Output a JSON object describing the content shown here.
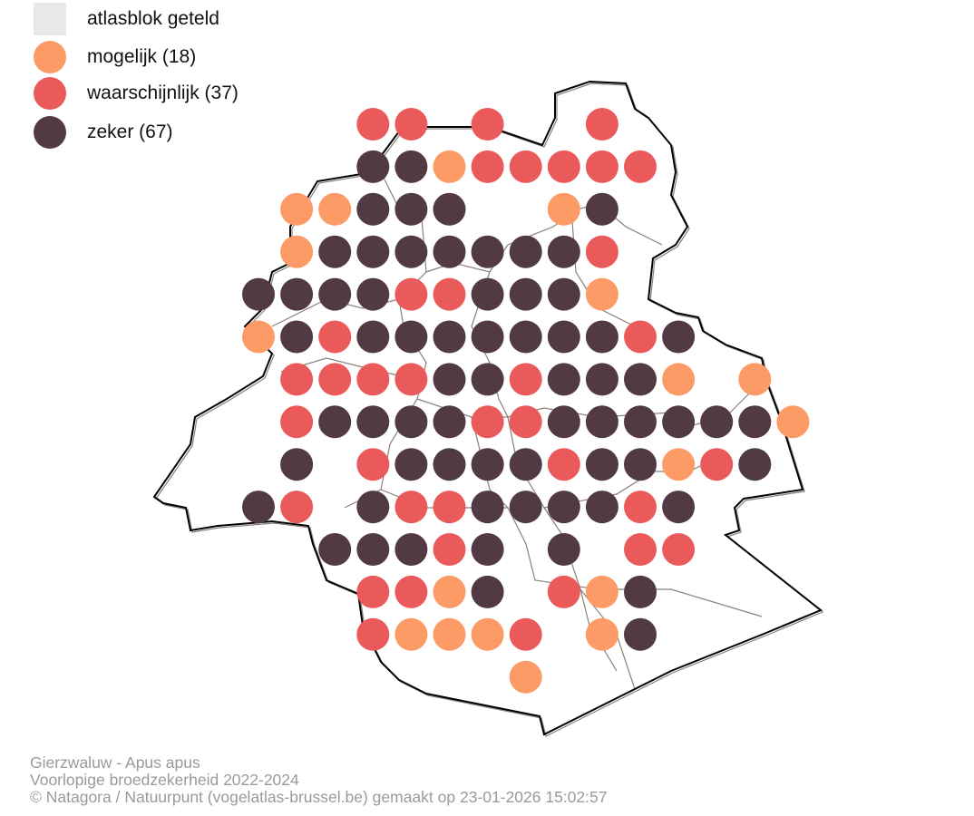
{
  "legend": {
    "items": [
      {
        "key": "counted",
        "label": "atlasblok geteld",
        "color": "#e8e8e8",
        "shape": "square"
      },
      {
        "key": "M",
        "label": "mogelijk (18)",
        "color": "#fc9b66",
        "shape": "circle"
      },
      {
        "key": "W",
        "label": "waarschijnlijk (37)",
        "color": "#eb5a5b",
        "shape": "circle"
      },
      {
        "key": "Z",
        "label": "zeker (67)",
        "color": "#523a45",
        "shape": "circle"
      }
    ]
  },
  "map": {
    "grid": [
      "...WW.W..W.....",
      "...ZZMWWWWW....",
      ".MMZZZ..MZ.....",
      ".MZZZZZZZW.....",
      "ZZZZWWZZZM.....",
      "MZWZZZZZZZWZ...",
      ".WWWWZZWZZZM.M.",
      ".WZZZZWWZZZZZZM",
      ".Z.WZZZZWZZMWZ.",
      "ZW.ZWWZZZZWZ...",
      "..ZZZWZ.Z.WW...",
      "...WWMZ.WMZ....",
      "...WMMMW.MZ....",
      ".......M......."
    ],
    "boundary_color": "#000000",
    "commune_color": "#8a8078"
  },
  "footer": {
    "line1": "Gierzwaluw - Apus apus",
    "line2": "Voorlopige broedzekerheid 2022-2024",
    "line3": "© Natagora / Natuurpunt (vogelatlas-brussel.be) gemaakt op 23-01-2026 15:02:57"
  }
}
